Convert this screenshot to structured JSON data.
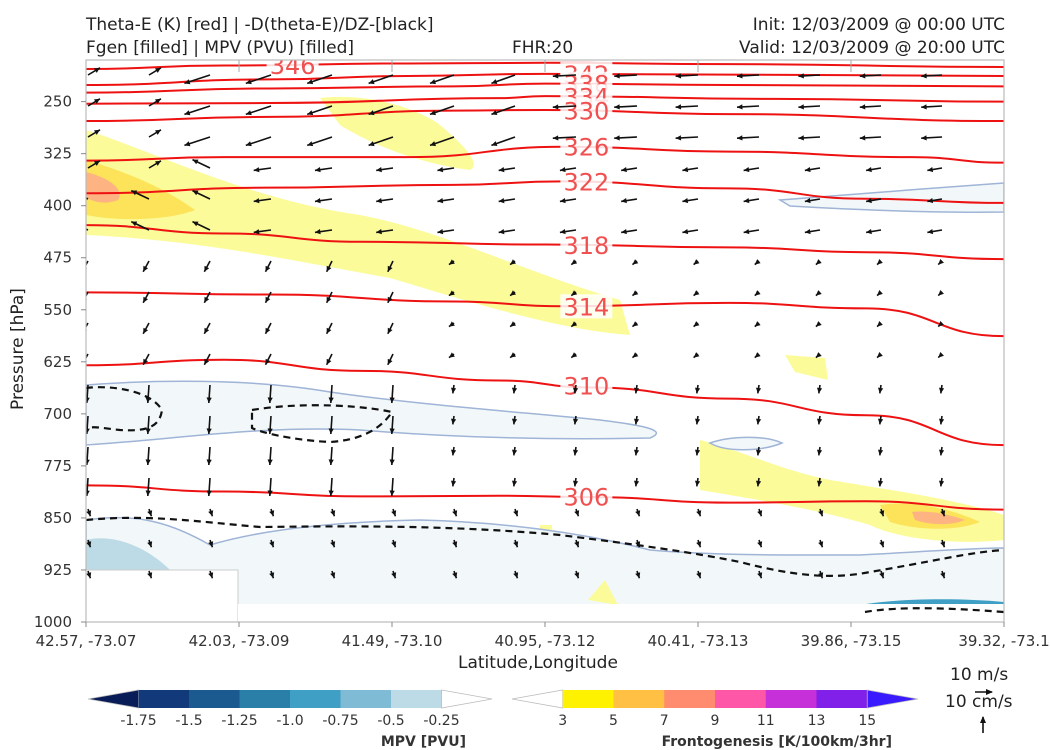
{
  "header": {
    "title_line1": "Theta-E (K) [red] | -D(theta-E)/DZ-[black]",
    "title_line2": "Fgen [filled] | MPV (PVU) [filled]",
    "fhr": "FHR:20",
    "init": "Init: 12/03/2009 @ 00:00 UTC",
    "valid": "Valid: 12/03/2009 @ 20:00 UTC"
  },
  "chart_data": {
    "type": "cross-section",
    "xlabel": "Latitude,Longitude",
    "ylabel": "Pressure [hPa]",
    "x_ticks": [
      "42.57, -73.07",
      "42.03, -73.09",
      "41.49, -73.10",
      "40.95, -73.12",
      "40.41, -73.13",
      "39.86, -73.15",
      "39.32, -73.1"
    ],
    "y_ticks": [
      250,
      325,
      400,
      475,
      550,
      625,
      700,
      775,
      850,
      925,
      1000
    ],
    "ylim": [
      1000,
      190
    ],
    "theta_e_contours": [
      {
        "label": "346",
        "points": [
          [
            0,
            203
          ],
          [
            0.15,
            198
          ],
          [
            0.35,
            195
          ],
          [
            0.5,
            194
          ],
          [
            0.7,
            196
          ],
          [
            1,
            200
          ]
        ]
      },
      {
        "label": "342",
        "points": [
          [
            0,
            226
          ],
          [
            0.2,
            218
          ],
          [
            0.35,
            213
          ],
          [
            0.5,
            210
          ],
          [
            0.7,
            211
          ],
          [
            1,
            213
          ]
        ]
      },
      {
        "label": "338",
        "points": [
          [
            0,
            237
          ],
          [
            0.2,
            231
          ],
          [
            0.4,
            228
          ],
          [
            0.5,
            224
          ],
          [
            0.7,
            226
          ],
          [
            1,
            228
          ]
        ]
      },
      {
        "label": "334",
        "points": [
          [
            0,
            253
          ],
          [
            0.2,
            252
          ],
          [
            0.45,
            245
          ],
          [
            0.5,
            242
          ],
          [
            0.75,
            246
          ],
          [
            1,
            250
          ]
        ]
      },
      {
        "label": "330",
        "points": [
          [
            0,
            278
          ],
          [
            0.2,
            272
          ],
          [
            0.4,
            263
          ],
          [
            0.5,
            262
          ],
          [
            0.7,
            268
          ],
          [
            1,
            278
          ]
        ]
      },
      {
        "label": "326",
        "points": [
          [
            0,
            335
          ],
          [
            0.15,
            330
          ],
          [
            0.35,
            330
          ],
          [
            0.52,
            315
          ],
          [
            0.7,
            322
          ],
          [
            0.9,
            330
          ],
          [
            1,
            338
          ]
        ]
      },
      {
        "label": "322",
        "points": [
          [
            0,
            382
          ],
          [
            0.2,
            374
          ],
          [
            0.4,
            370
          ],
          [
            0.52,
            365
          ],
          [
            0.7,
            375
          ],
          [
            0.85,
            390
          ],
          [
            1,
            396
          ]
        ]
      },
      {
        "label": "318",
        "points": [
          [
            0,
            428
          ],
          [
            0.15,
            440
          ],
          [
            0.3,
            452
          ],
          [
            0.5,
            456
          ],
          [
            0.7,
            460
          ],
          [
            0.85,
            467
          ],
          [
            1,
            477
          ]
        ]
      },
      {
        "label": "314",
        "points": [
          [
            0,
            525
          ],
          [
            0.2,
            528
          ],
          [
            0.4,
            538
          ],
          [
            0.52,
            545
          ],
          [
            0.7,
            540
          ],
          [
            0.85,
            548
          ],
          [
            1,
            588
          ]
        ]
      },
      {
        "label": "310",
        "points": [
          [
            0,
            630
          ],
          [
            0.15,
            622
          ],
          [
            0.3,
            638
          ],
          [
            0.45,
            652
          ],
          [
            0.55,
            662
          ],
          [
            0.7,
            678
          ],
          [
            0.85,
            702
          ],
          [
            1,
            745
          ]
        ]
      },
      {
        "label": "306",
        "points": [
          [
            0,
            803
          ],
          [
            0.15,
            812
          ],
          [
            0.3,
            819
          ],
          [
            0.45,
            818
          ],
          [
            0.55,
            820
          ],
          [
            0.7,
            828
          ],
          [
            0.85,
            826
          ],
          [
            1,
            838
          ]
        ]
      }
    ],
    "mpv_legend": {
      "label": "MPV [PVU]",
      "ticks": [
        "-1.75",
        "-1.5",
        "-1.25",
        "-1.0",
        "-0.75",
        "-0.5",
        "-0.25"
      ],
      "colors": [
        "#081d58",
        "#123a7a",
        "#1b5a8e",
        "#2a7fa8",
        "#3f9fc4",
        "#7fbbd5",
        "#bcdbe6",
        "#ffffff"
      ]
    },
    "fgen_legend": {
      "label": "Frontogenesis [K/100km/3hr]",
      "ticks": [
        "3",
        "5",
        "7",
        "9",
        "11",
        "13",
        "15"
      ],
      "colors": [
        "#ffffff",
        "#fff200",
        "#ffc044",
        "#ff8c6e",
        "#ff57a8",
        "#c530d8",
        "#8020e8",
        "#3a1aff"
      ]
    },
    "wind_key": {
      "horizontal": "10 m/s",
      "vertical": "10 cm/s"
    }
  }
}
